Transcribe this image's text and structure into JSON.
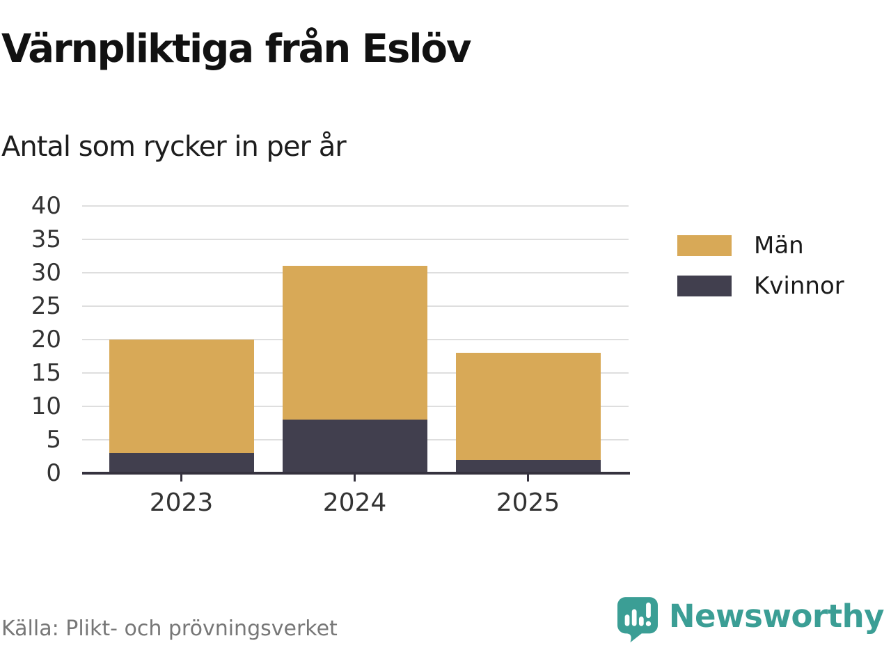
{
  "page": {
    "title": "Värnpliktiga från Eslöv",
    "subtitle": "Antal som rycker in per år",
    "source": "Källa: Plikt- och prövningsverket",
    "brand": "Newsworthy"
  },
  "colors": {
    "men": "#d8a957",
    "women": "#413f4e",
    "gridline": "#dedede",
    "axis": "#35323e",
    "tick_label": "#333333",
    "brand_teal": "#3b9e95",
    "source_gray": "#777777"
  },
  "chart_data": {
    "type": "bar",
    "stacked": true,
    "title": "Värnpliktiga från Eslöv",
    "subtitle": "Antal som rycker in per år",
    "categories": [
      "2023",
      "2024",
      "2025"
    ],
    "series": [
      {
        "name": "Män",
        "color": "#d8a957",
        "values": [
          17,
          23,
          16
        ]
      },
      {
        "name": "Kvinnor",
        "color": "#413f4e",
        "values": [
          3,
          8,
          2
        ]
      }
    ],
    "totals": [
      20,
      31,
      18
    ],
    "xlabel": "",
    "ylabel": "",
    "ylim": [
      0,
      40
    ],
    "yticks": [
      0,
      5,
      10,
      15,
      20,
      25,
      30,
      35,
      40
    ],
    "grid": true,
    "legend_position": "right"
  }
}
